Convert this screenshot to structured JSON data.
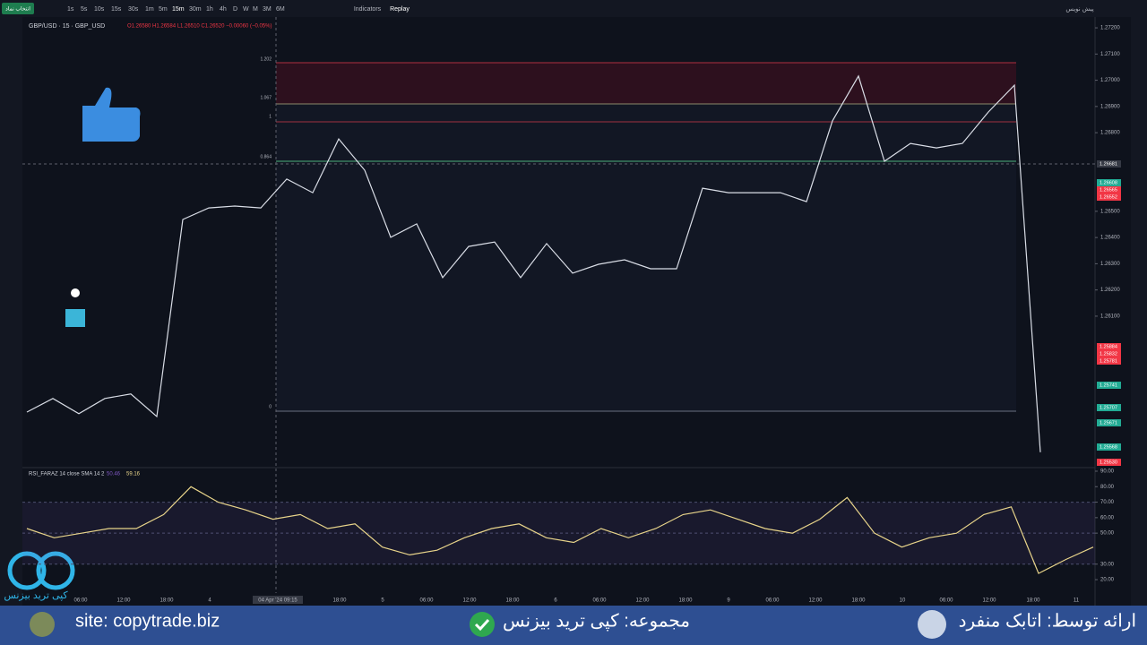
{
  "toolbar": {
    "symbol_button": "انتخاب نماد",
    "intervals": [
      "1s",
      "5s",
      "10s",
      "15s",
      "30s",
      "1m",
      "5m",
      "15m",
      "30m",
      "1h",
      "4h",
      "D",
      "W",
      "M",
      "3M",
      "6M"
    ],
    "indicators": "Indicators",
    "replay": "Replay",
    "draft": "پیش نویس"
  },
  "legend": {
    "symbol": "GBP/USD · 15 · GBP_USD",
    "ohlc": "O1.26580 H1.26584 L1.26510 C1.26520 −0.00060 (−0.05%)"
  },
  "fib_levels": [
    "1.202",
    "1.067",
    "1",
    "0.864",
    "0"
  ],
  "price_badges": [
    {
      "label": "1.26681",
      "color": "#363a45"
    },
    {
      "label": "1.26608",
      "color": "#22ab94"
    },
    {
      "label": "1.26565",
      "color": "#f23645"
    },
    {
      "label": "1.26552",
      "color": "#f23645"
    },
    {
      "label": "1.25884",
      "color": "#f23645"
    },
    {
      "label": "1.25832",
      "color": "#f23645"
    },
    {
      "label": "1.25781",
      "color": "#f23645"
    },
    {
      "label": "1.25741",
      "color": "#22ab94"
    },
    {
      "label": "1.25707",
      "color": "#22ab94"
    },
    {
      "label": "1.25671",
      "color": "#22ab94"
    },
    {
      "label": "1.25568",
      "color": "#22ab94"
    },
    {
      "label": "1.25530",
      "color": "#f23645"
    }
  ],
  "rsi_legend": {
    "name": "RSI_FARAZ 14 close SMA 14 2",
    "value_1": "50.46",
    "value_2": "59.16"
  },
  "time_axis": [
    "06:00",
    "12:00",
    "18:00",
    "4",
    "04 Apr '24  09:15",
    "18:00",
    "5",
    "06:00",
    "12:00",
    "18:00",
    "6",
    "06:00",
    "12:00",
    "18:00",
    "9",
    "06:00",
    "12:00",
    "18:00",
    "10",
    "06:00",
    "12:00",
    "18:00",
    "11"
  ],
  "chart_data": [
    {
      "type": "line",
      "name": "GBP/USD",
      "color": "#d9dde6",
      "values": [
        1.25734,
        1.25786,
        1.25728,
        1.25786,
        1.25803,
        1.25717,
        1.26469,
        1.26513,
        1.2652,
        1.26513,
        1.26623,
        1.26571,
        1.26776,
        1.26657,
        1.26401,
        1.26452,
        1.26247,
        1.26366,
        1.26383,
        1.26247,
        1.26377,
        1.26264,
        1.26298,
        1.26315,
        1.26281,
        1.26281,
        1.26588,
        1.26571,
        1.26571,
        1.26571,
        1.26537,
        1.26845,
        1.27016,
        1.26691,
        1.26759,
        1.26742,
        1.26759,
        1.26879,
        1.26981,
        1.25581
      ],
      "ylim": [
        1.25529,
        1.27231
      ],
      "yticks": [
        {
          "value": 1.272,
          "label": "1.27200"
        },
        {
          "value": 1.271,
          "label": "1.27100"
        },
        {
          "value": 1.27,
          "label": "1.27000"
        },
        {
          "value": 1.269,
          "label": "1.26900"
        },
        {
          "value": 1.268,
          "label": "1.26800"
        },
        {
          "value": 1.265,
          "label": "1.26500"
        },
        {
          "value": 1.264,
          "label": "1.26400"
        },
        {
          "value": 1.263,
          "label": "1.26300"
        },
        {
          "value": 1.262,
          "label": "1.26200"
        },
        {
          "value": 1.261,
          "label": "1.26100"
        }
      ]
    },
    {
      "type": "line",
      "name": "RSI SMA",
      "color": "#e8d48a",
      "values": [
        53,
        47,
        50,
        53,
        53,
        62,
        80,
        70,
        65,
        59,
        62,
        53,
        56,
        41,
        36,
        39,
        47,
        53,
        56,
        47,
        44,
        53,
        47,
        53,
        62,
        65,
        59,
        53,
        50,
        59,
        73,
        50,
        41,
        47,
        50,
        62,
        67,
        24,
        33,
        41
      ],
      "ylim": [
        12.5,
        92.3
      ],
      "yticks": [
        {
          "value": 90,
          "label": "90.00"
        },
        {
          "value": 80,
          "label": "80.00"
        },
        {
          "value": 70,
          "label": "70.00"
        },
        {
          "value": 60,
          "label": "60.00"
        },
        {
          "value": 50,
          "label": "50.00"
        },
        {
          "value": 30,
          "label": "30.00"
        },
        {
          "value": 20,
          "label": "20.00"
        }
      ]
    }
  ],
  "logo": "کپی ترید بیزنس",
  "footer": {
    "site": "site: copytrade.biz",
    "collection": "مجموعه: کپی ترید بیزنس",
    "presenter": "ارائه توسط: اتابک منفرد"
  }
}
